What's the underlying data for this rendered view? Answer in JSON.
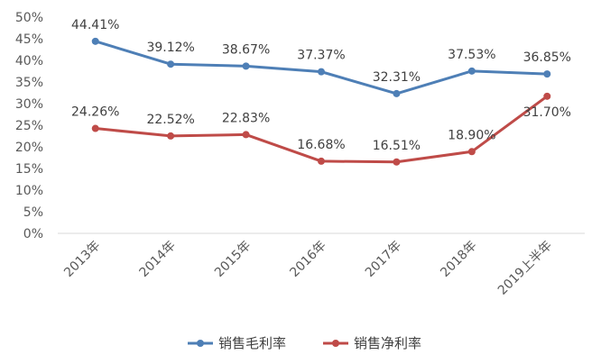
{
  "chart_data": {
    "type": "line",
    "categories": [
      "2013年",
      "2014年",
      "2015年",
      "2016年",
      "2017年",
      "2018年",
      "2019上半年"
    ],
    "series": [
      {
        "name": "销售毛利率",
        "values": [
          44.41,
          39.12,
          38.67,
          37.37,
          32.31,
          37.53,
          36.85
        ],
        "labels": [
          "44.41%",
          "39.12%",
          "38.67%",
          "37.37%",
          "32.31%",
          "37.53%",
          "36.85%"
        ],
        "color": "#4e7fb6"
      },
      {
        "name": "销售净利率",
        "values": [
          24.26,
          22.52,
          22.83,
          16.68,
          16.51,
          18.9,
          31.7
        ],
        "labels": [
          "24.26%",
          "22.52%",
          "22.83%",
          "16.68%",
          "16.51%",
          "18.90%",
          "31.70%"
        ],
        "color": "#bf4b48"
      }
    ],
    "y_ticks": [
      "0%",
      "5%",
      "10%",
      "15%",
      "20%",
      "25%",
      "30%",
      "35%",
      "40%",
      "45%",
      "50%"
    ],
    "ylim": [
      0,
      50
    ],
    "grid": false,
    "legend_position": "bottom"
  }
}
